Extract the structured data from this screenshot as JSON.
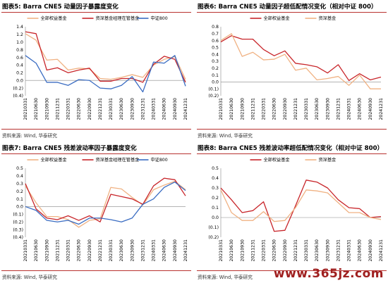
{
  "panels": [
    {
      "title": "图表5: Barra CNE5 动量因子暴露度变化",
      "source": "资料来源: Wind, 华泰研究"
    },
    {
      "title": "图表6: Barra CNE5 动量因子超低配情况变化（相对中证 800）",
      "source": "资料来源: Wind, 华泰研究"
    },
    {
      "title": "图表7: Barra CNE5 残差波动率因子暴露度变化",
      "source": "资料来源: Wind, 华泰研究"
    },
    {
      "title": "图表8: Barra CNE5 残差波动率超低配情况变化（相对中证 800）",
      "source": "资料来源: Wind, 华泰研究"
    }
  ],
  "watermark": "www.365jz.com",
  "chart_data": [
    {
      "type": "line",
      "title": "图表5: Barra CNE5 动量因子暴露度变化",
      "x": [
        "20210331",
        "20210630",
        "20210930",
        "20211231",
        "20220331",
        "20220630",
        "20220930",
        "20221231",
        "20230331",
        "20230630",
        "20230930",
        "20231231",
        "20240331",
        "20240630",
        "20240930",
        "20241231"
      ],
      "ylim": [
        -0.4,
        1.4
      ],
      "yticks": [
        -0.4,
        -0.2,
        0.0,
        0.2,
        0.4,
        0.6,
        0.8,
        1.0,
        1.2,
        1.4
      ],
      "yticklabels": [
        "(0.4)",
        "(0.2)",
        "0.0",
        "0.2",
        "0.4",
        "0.6",
        "0.8",
        "1.0",
        "1.2",
        "1.4"
      ],
      "legend_position": "top",
      "grid": false,
      "series": [
        {
          "name": "全部权益基金",
          "color": "#f0b283",
          "values": [
            1.22,
            1.05,
            0.53,
            0.55,
            0.27,
            0.32,
            0.3,
            0.05,
            0.03,
            0.08,
            0.15,
            0.08,
            0.4,
            0.55,
            0.62,
            0.03
          ]
        },
        {
          "name": "资深基金经理在管基金",
          "color": "#c8252a",
          "values": [
            1.27,
            1.22,
            0.27,
            0.33,
            0.2,
            0.27,
            0.32,
            -0.02,
            -0.02,
            0.05,
            0.05,
            -0.05,
            0.42,
            0.63,
            0.55,
            -0.05
          ]
        },
        {
          "name": "中证800",
          "color": "#3a6cc2",
          "values": [
            0.65,
            0.45,
            -0.05,
            -0.05,
            -0.13,
            0.02,
            0.0,
            -0.2,
            -0.22,
            -0.13,
            0.1,
            -0.3,
            0.48,
            0.45,
            0.65,
            -0.15
          ]
        }
      ]
    },
    {
      "type": "line",
      "title": "图表6: Barra CNE5 动量因子超低配情况变化（相对中证 800）",
      "x": [
        "20210331",
        "20210630",
        "20210930",
        "20211231",
        "20220331",
        "20220630",
        "20220930",
        "20221231",
        "20230331",
        "20230630",
        "20230930",
        "20231231",
        "20240331",
        "20240630",
        "20240930",
        "20241231"
      ],
      "ylim": [
        -0.2,
        0.8
      ],
      "yticks": [
        -0.2,
        -0.1,
        0.0,
        0.1,
        0.2,
        0.3,
        0.4,
        0.5,
        0.6,
        0.7,
        0.8
      ],
      "yticklabels": [
        "(0.2)",
        "(0.1)",
        "0.0",
        "0.1",
        "0.2",
        "0.3",
        "0.4",
        "0.5",
        "0.6",
        "0.7",
        "0.8"
      ],
      "legend_position": "top",
      "grid": false,
      "series": [
        {
          "name": "全部权益基金",
          "color": "#c8252a",
          "values": [
            0.58,
            0.67,
            0.62,
            0.62,
            0.47,
            0.38,
            0.45,
            0.27,
            0.25,
            0.22,
            0.13,
            0.25,
            0.02,
            0.12,
            0.03,
            0.07
          ]
        },
        {
          "name": "资深基金",
          "color": "#f0b283",
          "values": [
            0.6,
            0.7,
            0.37,
            0.43,
            0.32,
            0.33,
            0.4,
            0.17,
            0.2,
            0.03,
            0.05,
            0.08,
            -0.05,
            0.1,
            -0.1,
            -0.1
          ]
        }
      ]
    },
    {
      "type": "line",
      "title": "图表7: Barra CNE5 残差波动率因子暴露度变化",
      "x": [
        "20210331",
        "20210630",
        "20210930",
        "20211231",
        "20220331",
        "20220630",
        "20220930",
        "20221231",
        "20230331",
        "20230630",
        "20230930",
        "20231231",
        "20240331",
        "20240630",
        "20240930",
        "20241231"
      ],
      "ylim": [
        -0.4,
        0.5
      ],
      "yticks": [
        -0.4,
        -0.3,
        -0.2,
        -0.1,
        0.0,
        0.1,
        0.2,
        0.3,
        0.4,
        0.5
      ],
      "yticklabels": [
        "(0.4)",
        "(0.3)",
        "(0.2)",
        "(0.1)",
        "0.0",
        "0.1",
        "0.2",
        "0.3",
        "0.4",
        "0.5"
      ],
      "legend_position": "top",
      "grid": false,
      "series": [
        {
          "name": "全部权益基金",
          "color": "#f0b283",
          "values": [
            0.27,
            0.05,
            -0.13,
            -0.13,
            -0.17,
            -0.27,
            -0.18,
            -0.16,
            0.25,
            0.23,
            0.12,
            0.02,
            0.22,
            0.28,
            0.33,
            0.22
          ]
        },
        {
          "name": "资深基金经理在管基金",
          "color": "#c8252a",
          "values": [
            0.3,
            -0.03,
            -0.15,
            -0.17,
            -0.12,
            -0.18,
            -0.12,
            -0.2,
            0.16,
            0.13,
            0.1,
            0.03,
            0.27,
            0.37,
            0.35,
            0.14
          ]
        },
        {
          "name": "中证800",
          "color": "#3a6cc2",
          "values": [
            0.0,
            -0.05,
            -0.18,
            -0.2,
            -0.18,
            -0.23,
            -0.15,
            -0.15,
            -0.17,
            -0.2,
            -0.15,
            0.03,
            0.1,
            0.25,
            0.32,
            0.21
          ]
        }
      ]
    },
    {
      "type": "line",
      "title": "图表8: Barra CNE5 残差波动率超低配情况变化（相对中证 800）",
      "x": [
        "20210331",
        "20210630",
        "20210930",
        "20211231",
        "20220331",
        "20220630",
        "20220930",
        "20221231",
        "20230331",
        "20230630",
        "20230930",
        "20231231",
        "20240331",
        "20240630",
        "20240930",
        "20241231"
      ],
      "ylim": [
        -0.2,
        0.5
      ],
      "yticks": [
        -0.2,
        -0.1,
        0.0,
        0.1,
        0.2,
        0.3,
        0.4,
        0.5
      ],
      "yticklabels": [
        "(0.2)",
        "(0.1)",
        "0.0",
        "0.1",
        "0.2",
        "0.3",
        "0.4",
        "0.5"
      ],
      "legend_position": "top",
      "grid": false,
      "series": [
        {
          "name": "全部权益基金",
          "color": "#c8252a",
          "values": [
            0.3,
            0.18,
            0.05,
            0.07,
            0.16,
            -0.14,
            -0.13,
            0.12,
            0.38,
            0.36,
            0.3,
            0.18,
            0.1,
            0.09,
            0.0,
            0.01
          ]
        },
        {
          "name": "资深基金",
          "color": "#f0b283",
          "values": [
            0.28,
            0.05,
            -0.03,
            -0.03,
            0.06,
            -0.04,
            -0.03,
            0.1,
            0.28,
            0.27,
            0.25,
            0.15,
            0.05,
            0.05,
            0.0,
            -0.02
          ]
        }
      ]
    }
  ]
}
